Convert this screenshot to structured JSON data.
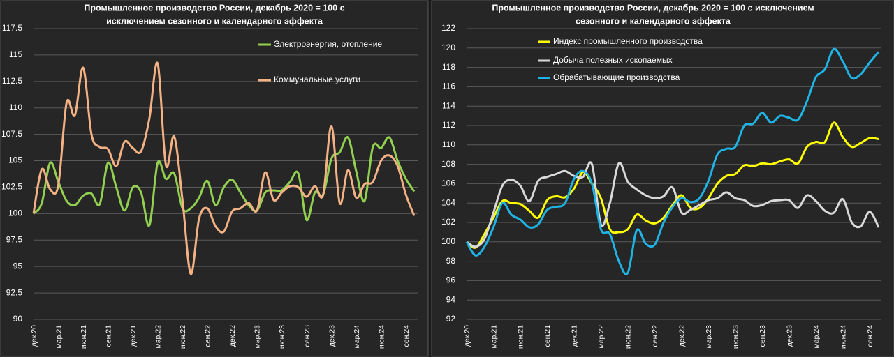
{
  "chart_data": [
    {
      "type": "line",
      "title": [
        "Промышленное производство России, декабрь 2020 = 100 с",
        "исключением сезонного и календарного эффекта"
      ],
      "categories": [
        "дек.20",
        null,
        null,
        "мар.21",
        null,
        null,
        "июн.21",
        null,
        null,
        "сен.21",
        null,
        null,
        "дек.21",
        null,
        null,
        "мар.22",
        null,
        null,
        "июн.22",
        null,
        null,
        "сен.22",
        null,
        null,
        "дек.22",
        null,
        null,
        "мар.23",
        null,
        null,
        "июн.23",
        null,
        null,
        "сен.23",
        null,
        null,
        "дек.23",
        null,
        null,
        "мар.24",
        null,
        null,
        "июн.24",
        null,
        null,
        "сен.24",
        null
      ],
      "ylim": [
        90,
        117.5
      ],
      "yticks": [
        90,
        92.5,
        95,
        97.5,
        100,
        102.5,
        105,
        107.5,
        110,
        112.5,
        115,
        117.5
      ],
      "grid": true,
      "legend": "upper right",
      "series": [
        {
          "name": "Электроэнергия, отопление",
          "color": "#92d050",
          "values": [
            100,
            101,
            104.8,
            103,
            101.2,
            100.8,
            101.7,
            101.9,
            100.9,
            104.8,
            102.5,
            100.3,
            102.5,
            102,
            98.9,
            104.8,
            103.3,
            103.8,
            100.5,
            100.5,
            101.5,
            103.1,
            100.8,
            102.5,
            103.2,
            102,
            100.8,
            100.3,
            102,
            102.2,
            102.2,
            103,
            103.8,
            99.4,
            102,
            101.8,
            105.2,
            105.8,
            107.2,
            104,
            101.2,
            106.3,
            106.2,
            107.2,
            105,
            103.3,
            102.1
          ]
        },
        {
          "name": "Коммунальные услуги",
          "color": "#f4b183",
          "values": [
            100,
            104.2,
            102.3,
            102.7,
            110.5,
            109.3,
            113.8,
            107.5,
            106.3,
            106.1,
            104.5,
            106.8,
            106.2,
            105.9,
            109,
            114.2,
            104.6,
            107.3,
            101.3,
            94.3,
            99.5,
            100.5,
            98.8,
            98.3,
            100.2,
            100.5,
            101,
            100.3,
            103.9,
            101.3,
            102,
            102.6,
            102.5,
            101.6,
            102.6,
            101.8,
            108.3,
            101,
            104.1,
            101.5,
            102.8,
            103,
            105,
            105.5,
            104.5,
            101.8,
            99.8
          ]
        }
      ]
    },
    {
      "type": "line",
      "title": [
        "Промышленное производство России, декабрь 2020 = 100 с исключением",
        "сезонного и календарного эффекта"
      ],
      "categories": [
        "дек.20",
        null,
        null,
        "мар.21",
        null,
        null,
        "июн.21",
        null,
        null,
        "сен.21",
        null,
        null,
        "дек.21",
        null,
        null,
        "мар.22",
        null,
        null,
        "июн.22",
        null,
        null,
        "сен.22",
        null,
        null,
        "дек.22",
        null,
        null,
        "мар.23",
        null,
        null,
        "июн.23",
        null,
        null,
        "сен.23",
        null,
        null,
        "дек.23",
        null,
        null,
        "мар.24",
        null,
        null,
        "июн.24",
        null,
        null,
        "сен.24",
        null
      ],
      "ylim": [
        92,
        122
      ],
      "yticks": [
        92,
        94,
        96,
        98,
        100,
        102,
        104,
        106,
        108,
        110,
        112,
        114,
        116,
        118,
        120,
        122
      ],
      "grid": true,
      "legend": "upper left",
      "series": [
        {
          "name": "Индекс промышленного производства",
          "color": "#ffff00",
          "values": [
            100,
            99.4,
            100.8,
            102.5,
            104.2,
            104,
            103.9,
            103.2,
            102.5,
            104.3,
            104.7,
            104.6,
            105.5,
            107.2,
            106,
            104.5,
            101.3,
            101,
            101.3,
            102.8,
            102.2,
            101.9,
            102.5,
            103.8,
            104.8,
            103.5,
            103.5,
            104.5,
            106,
            106.8,
            107,
            107.9,
            107.8,
            108.1,
            108,
            108.3,
            108.5,
            108.1,
            109.8,
            110.3,
            110.3,
            112.3,
            110.8,
            109.8,
            110.2,
            110.7,
            110.6
          ]
        },
        {
          "name": "Добыча полезных ископаемых",
          "color": "#d9d9d9",
          "values": [
            100,
            99.5,
            100.3,
            103,
            105.8,
            106.4,
            105.8,
            104.2,
            106.3,
            106.7,
            107,
            107.3,
            106.8,
            106.7,
            108,
            101.8,
            104,
            108.1,
            106.2,
            105.4,
            104.8,
            104.5,
            104.7,
            105.6,
            103,
            103.3,
            103.8,
            104.3,
            104.5,
            105.1,
            104.5,
            104.3,
            103.7,
            103.8,
            104.2,
            104.3,
            104.3,
            103.5,
            104.8,
            104.2,
            103.2,
            103,
            104.4,
            102,
            101.6,
            103.1,
            101.5
          ]
        },
        {
          "name": "Обрабатывающие производства",
          "color": "#1fb4e6",
          "values": [
            100,
            98.6,
            99.5,
            101.5,
            104,
            102.8,
            102.3,
            101.5,
            101.8,
            103.3,
            103.6,
            104,
            106.5,
            107.3,
            106,
            101.3,
            100.8,
            98,
            96.8,
            101.2,
            99.8,
            99.7,
            102,
            103.6,
            104.5,
            104.1,
            104.5,
            106.3,
            109,
            109.6,
            109.8,
            112,
            112.2,
            113.3,
            112.3,
            113,
            112.8,
            112.6,
            114.5,
            117,
            117.8,
            119.9,
            118.6,
            116.9,
            117.3,
            118.5,
            119.6
          ]
        }
      ]
    }
  ]
}
